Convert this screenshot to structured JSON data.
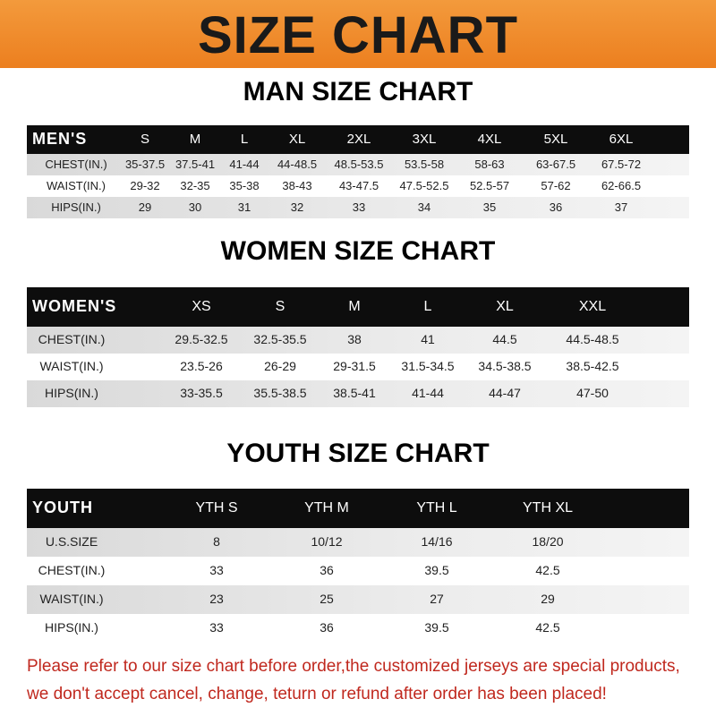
{
  "banner_title": "SIZE CHART",
  "tables": [
    {
      "title": "MAN SIZE CHART",
      "header_label": "MEN'S",
      "sizes": [
        "S",
        "M",
        "L",
        "XL",
        "2XL",
        "3XL",
        "4XL",
        "5XL",
        "6XL"
      ],
      "rows": [
        {
          "label": "CHEST(IN.)",
          "values": [
            "35-37.5",
            "37.5-41",
            "41-44",
            "44-48.5",
            "48.5-53.5",
            "53.5-58",
            "58-63",
            "63-67.5",
            "67.5-72"
          ]
        },
        {
          "label": "WAIST(IN.)",
          "values": [
            "29-32",
            "32-35",
            "35-38",
            "38-43",
            "43-47.5",
            "47.5-52.5",
            "52.5-57",
            "57-62",
            "62-66.5"
          ]
        },
        {
          "label": "HIPS(IN.)",
          "values": [
            "29",
            "30",
            "31",
            "32",
            "33",
            "34",
            "35",
            "36",
            "37"
          ]
        }
      ]
    },
    {
      "title": "WOMEN SIZE CHART",
      "header_label": "WOMEN'S",
      "sizes": [
        "XS",
        "S",
        "M",
        "L",
        "XL",
        "XXL"
      ],
      "rows": [
        {
          "label": "CHEST(IN.)",
          "values": [
            "29.5-32.5",
            "32.5-35.5",
            "38",
            "41",
            "44.5",
            "44.5-48.5"
          ]
        },
        {
          "label": "WAIST(IN.)",
          "values": [
            "23.5-26",
            "26-29",
            "29-31.5",
            "31.5-34.5",
            "34.5-38.5",
            "38.5-42.5"
          ]
        },
        {
          "label": "HIPS(IN.)",
          "values": [
            "33-35.5",
            "35.5-38.5",
            "38.5-41",
            "41-44",
            "44-47",
            "47-50"
          ]
        }
      ]
    },
    {
      "title": "YOUTH SIZE CHART",
      "header_label": "YOUTH",
      "sizes": [
        "YTH S",
        "YTH M",
        "YTH L",
        "YTH XL"
      ],
      "rows": [
        {
          "label": "U.S.SIZE",
          "values": [
            "8",
            "10/12",
            "14/16",
            "18/20"
          ]
        },
        {
          "label": "CHEST(IN.)",
          "values": [
            "33",
            "36",
            "39.5",
            "42.5"
          ]
        },
        {
          "label": "WAIST(IN.)",
          "values": [
            "23",
            "25",
            "27",
            "29"
          ]
        },
        {
          "label": "HIPS(IN.)",
          "values": [
            "33",
            "36",
            "39.5",
            "42.5"
          ]
        }
      ]
    }
  ],
  "footer": {
    "line1": "Please refer to our size chart before order,the customized jerseys are special products,",
    "line2": "we don't accept cancel, change, teturn or refund after order has been placed!"
  },
  "colors": {
    "banner": "#ec7f1f",
    "header_bar": "#0d0d0d",
    "footer_text": "#c0281e"
  }
}
